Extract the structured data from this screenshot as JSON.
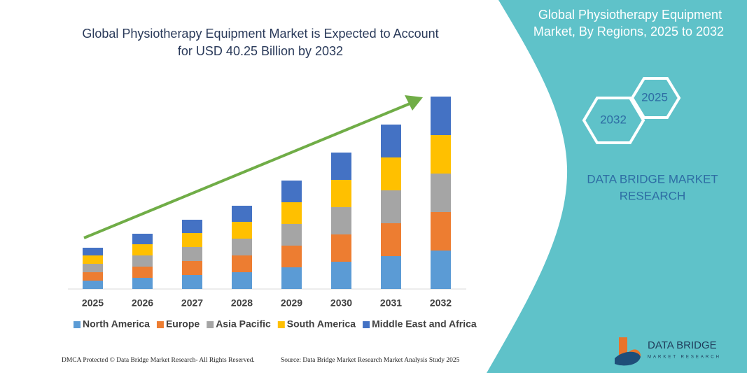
{
  "chart_data": {
    "type": "bar",
    "stacked": true,
    "title": [
      "Global Physiotherapy Equipment Market is Expected to Account",
      "for USD 40.25 Billion by 2032"
    ],
    "categories": [
      "2025",
      "2026",
      "2027",
      "2028",
      "2029",
      "2030",
      "2031",
      "2032"
    ],
    "series": [
      {
        "name": "North America",
        "color": "#5b9bd5",
        "values": [
          12,
          16,
          20,
          24,
          31,
          39,
          47,
          55
        ]
      },
      {
        "name": "Europe",
        "color": "#ed7d31",
        "values": [
          12,
          16,
          20,
          24,
          31,
          39,
          47,
          55
        ]
      },
      {
        "name": "Asia Pacific",
        "color": "#a5a5a5",
        "values": [
          12,
          16,
          20,
          24,
          31,
          39,
          47,
          55
        ]
      },
      {
        "name": "South America",
        "color": "#ffc000",
        "values": [
          12,
          16,
          20,
          24,
          31,
          39,
          47,
          55
        ]
      },
      {
        "name": "Middle East and Africa",
        "color": "#4472c4",
        "values": [
          11,
          15,
          19,
          23,
          31,
          39,
          47,
          55
        ]
      }
    ],
    "ylim": [
      0,
      280
    ],
    "legend": "bottom",
    "trend_arrow_color": "#70ad47"
  },
  "panel": {
    "title": [
      "Global Physiotherapy Equipment",
      "Market, By Regions, 2025 to 2032"
    ],
    "hexagons": [
      "2025",
      "2032"
    ],
    "brand": [
      "DATA BRIDGE MARKET",
      "RESEARCH"
    ],
    "logo": [
      "DATA BRIDGE",
      "MARKET RESEARCH"
    ]
  },
  "footer": {
    "left": "DMCA Protected © Data Bridge Market Research- All Rights Reserved.",
    "right": "Source: Data Bridge Market Research Market Analysis Study 2025"
  }
}
